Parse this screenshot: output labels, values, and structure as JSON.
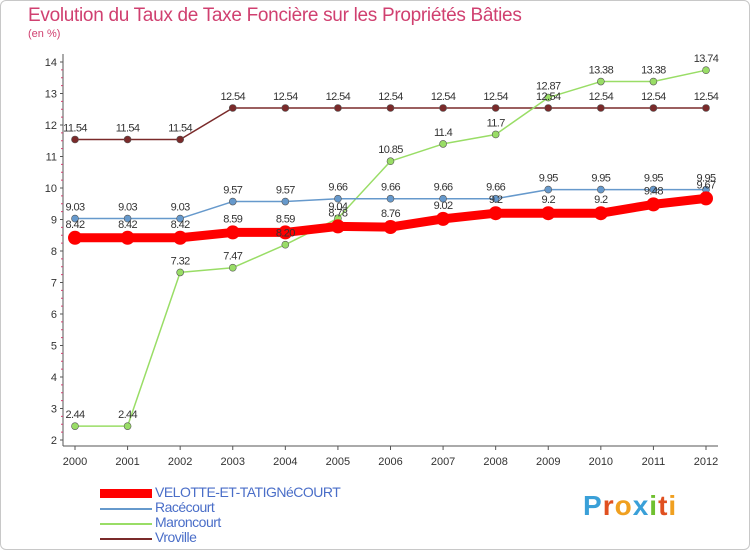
{
  "title": "Evolution du Taux de Taxe Foncière sur les Propriétés Bâties",
  "subtitle": "(en %)",
  "logo": {
    "letters": [
      "P",
      "r",
      "o",
      "x",
      "i",
      "t",
      "i"
    ],
    "colors": [
      "#3aa0d8",
      "#e05020",
      "#f0a020",
      "#3aa0d8",
      "#70c030",
      "#e05020",
      "#f0a020"
    ]
  },
  "chart_data": {
    "type": "line",
    "title": "Evolution du Taux de Taxe Foncière sur les Propriétés Bâties",
    "ylabel": "(en %)",
    "x": [
      "2000",
      "2001",
      "2002",
      "2003",
      "2004",
      "2005",
      "2006",
      "2007",
      "2008",
      "2009",
      "2010",
      "2011",
      "2012"
    ],
    "ylim": [
      2,
      14
    ],
    "yticks": [
      "2",
      "3",
      "4",
      "5",
      "6",
      "7",
      "8",
      "9",
      "10",
      "11",
      "12",
      "13",
      "14"
    ],
    "series": [
      {
        "name": "VELOTTE-ET-TATIGNéCOURT",
        "color": "#ff0000",
        "width": 9,
        "marker": 7,
        "values": [
          8.42,
          8.42,
          8.42,
          8.59,
          8.59,
          8.78,
          8.76,
          9.02,
          9.2,
          9.2,
          9.2,
          9.48,
          9.67
        ],
        "labels": [
          "8.42",
          "8.42",
          "8.42",
          "8.59",
          "8.59",
          "8.78",
          "8.76",
          "9.02",
          "9.2",
          "9.2",
          "9.2",
          "9.48",
          "9.67"
        ]
      },
      {
        "name": "Racécourt",
        "color": "#6699cc",
        "width": 1.5,
        "marker": 3.5,
        "values": [
          9.03,
          9.03,
          9.03,
          9.57,
          9.57,
          9.66,
          9.66,
          9.66,
          9.66,
          9.95,
          9.95,
          9.95,
          9.95
        ],
        "labels": [
          "9.03",
          "9.03",
          "9.03",
          "9.57",
          "9.57",
          "9.66",
          "9.66",
          "9.66",
          "9.66",
          "9.95",
          "9.95",
          "9.95",
          "9.95"
        ]
      },
      {
        "name": "Maroncourt",
        "color": "#99dd66",
        "width": 1.5,
        "marker": 3.5,
        "values": [
          2.44,
          2.44,
          7.32,
          7.47,
          8.2,
          9.04,
          10.85,
          11.4,
          11.7,
          12.87,
          13.38,
          13.38,
          13.74
        ],
        "labels": [
          "2.44",
          "2.44",
          "7.32",
          "7.47",
          "8.20",
          "9.04",
          "10.85",
          "11.4",
          "11.7",
          "12.87",
          "13.38",
          "13.38",
          "13.74"
        ]
      },
      {
        "name": "Vroville",
        "color": "#7a2a2a",
        "width": 1.5,
        "marker": 3.5,
        "values": [
          11.54,
          11.54,
          11.54,
          12.54,
          12.54,
          12.54,
          12.54,
          12.54,
          12.54,
          12.54,
          12.54,
          12.54,
          12.54
        ],
        "labels": [
          "11.54",
          "11.54",
          "11.54",
          "12.54",
          "12.54",
          "12.54",
          "12.54",
          "12.54",
          "12.54",
          "12.54",
          "12.54",
          "12.54",
          "12.54"
        ]
      }
    ],
    "legend_position": "bottom-left",
    "grid": false
  }
}
